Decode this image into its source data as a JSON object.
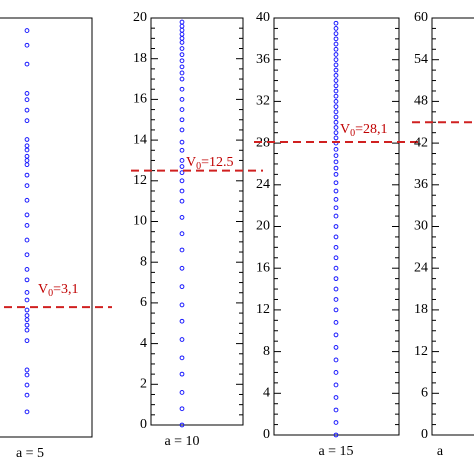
{
  "chart_data": [
    {
      "type": "strip",
      "xlabel": "a = 5",
      "ylim": [
        0,
        10
      ],
      "color": "#1a1aff",
      "line_color": "#d02020",
      "hline": 3.1,
      "annotation": [
        "V",
        "0",
        "=3,1"
      ],
      "values": [
        9.7,
        9.35,
        8.9,
        8.2,
        8.05,
        7.8,
        7.55,
        7.1,
        6.95,
        6.85,
        6.7,
        6.6,
        6.5,
        6.25,
        6.0,
        5.65,
        5.3,
        5.05,
        4.7,
        4.35,
        4.0,
        3.75,
        3.45,
        3.27,
        3.03,
        2.9,
        2.8,
        2.67,
        2.55,
        2.3,
        1.6,
        1.48,
        1.24,
        1.0,
        0.6
      ]
    },
    {
      "type": "strip",
      "xlabel": "a = 10",
      "ylim": [
        0,
        20
      ],
      "yticks": [
        0,
        2,
        4,
        6,
        8,
        10,
        12,
        14,
        16,
        18,
        20
      ],
      "color": "#1a1aff",
      "line_color": "#d02020",
      "hline": 12.5,
      "annotation": [
        "V",
        "0",
        "=12.5"
      ],
      "values": [
        0.0,
        0.8,
        1.6,
        2.5,
        3.3,
        4.2,
        5.1,
        5.9,
        6.8,
        7.7,
        8.6,
        9.4,
        10.2,
        11.0,
        11.5,
        12.0,
        12.4,
        12.7,
        13.0,
        13.5,
        13.9,
        14.5,
        15.0,
        15.5,
        16.0,
        16.5,
        17.0,
        17.3,
        17.6,
        17.9,
        18.2,
        18.5,
        18.8,
        19.0,
        19.2,
        19.4,
        19.6,
        19.8
      ]
    },
    {
      "type": "strip",
      "xlabel": "a = 15",
      "ylim": [
        0,
        40
      ],
      "yticks": [
        0,
        4,
        8,
        12,
        16,
        20,
        24,
        28,
        32,
        36,
        40
      ],
      "color": "#1a1aff",
      "line_color": "#d02020",
      "hline": 28.1,
      "annotation": [
        "V",
        "0",
        "=28,1"
      ],
      "values": [
        0,
        1.2,
        2.4,
        3.6,
        4.8,
        6,
        7.2,
        8.4,
        9.6,
        10.8,
        12,
        13,
        14,
        15,
        16,
        17,
        18,
        19,
        20,
        21,
        21.8,
        22.6,
        23.4,
        24.2,
        25,
        25.6,
        26.2,
        26.8,
        27.4,
        28,
        28.5,
        29,
        29.5,
        30,
        30.5,
        31,
        31.5,
        32,
        32.5,
        33,
        33.5,
        34,
        34.5,
        35,
        35.5,
        36,
        36.5,
        37,
        37.5,
        38,
        38.5,
        39,
        39.5
      ]
    },
    {
      "type": "strip",
      "xlabel": "a",
      "ylim": [
        0,
        60
      ],
      "yticks": [
        0,
        6,
        12,
        18,
        24,
        30,
        36,
        42,
        48,
        54,
        60
      ],
      "color": "#1a1aff",
      "line_color": "#d02020",
      "hline": 45,
      "values": []
    }
  ]
}
